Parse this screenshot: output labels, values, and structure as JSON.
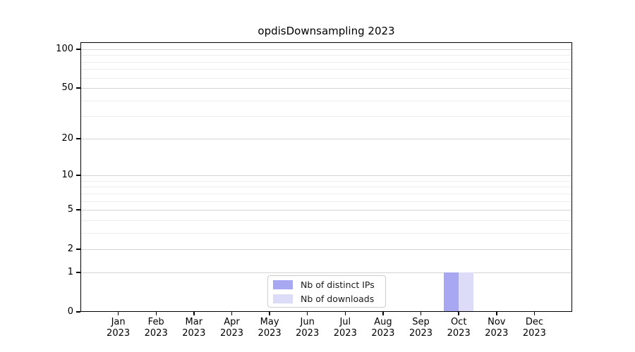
{
  "chart_data": {
    "type": "bar",
    "title": "opdisDownsampling 2023",
    "categories": [
      "Jan",
      "Feb",
      "Mar",
      "Apr",
      "May",
      "Jun",
      "Jul",
      "Aug",
      "Sep",
      "Oct",
      "Nov",
      "Dec"
    ],
    "category_year": "2023",
    "series": [
      {
        "name": "Nb of distinct IPs",
        "color": "#a8a8f2",
        "values": [
          0,
          0,
          0,
          0,
          0,
          0,
          0,
          0,
          0,
          1,
          0,
          0
        ]
      },
      {
        "name": "Nb of downloads",
        "color": "#dcdcf8",
        "values": [
          0,
          0,
          0,
          0,
          0,
          0,
          0,
          0,
          0,
          1,
          0,
          0
        ]
      }
    ],
    "xlabel": "",
    "ylabel": "",
    "yscale": "log1p",
    "ylim": [
      0,
      113
    ],
    "yticks": [
      0,
      1,
      2,
      5,
      10,
      20,
      50,
      100
    ],
    "minor_gridlines": [
      3,
      4,
      6,
      7,
      8,
      9,
      30,
      40,
      60,
      70,
      80,
      90
    ],
    "grid": true,
    "grid_major_color": "#d4d4d4",
    "grid_minor_color": "#ededed",
    "legend_position": "lower-center-inside",
    "bar_value_month": "Oct 2023",
    "bar_values": {
      "Nb of distinct IPs": 1,
      "Nb of downloads": 1
    }
  }
}
